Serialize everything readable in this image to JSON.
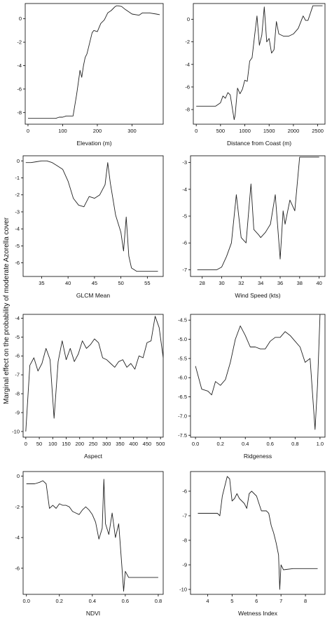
{
  "figure": {
    "y_axis_label": "Marginal effect on the probability of moderate Azorella cover"
  },
  "chart_data": [
    {
      "type": "line",
      "xlabel": "Elevation (m)",
      "xlim": [
        -8,
        390
      ],
      "ylim": [
        -9,
        1.3
      ],
      "xticks": [
        0,
        100,
        200,
        300
      ],
      "yticks": [
        0,
        -2,
        -4,
        -6,
        -8
      ],
      "x": [
        0,
        80,
        90,
        100,
        110,
        125,
        130,
        140,
        145,
        150,
        155,
        160,
        165,
        170,
        175,
        185,
        190,
        200,
        210,
        220,
        230,
        240,
        250,
        255,
        260,
        270,
        280,
        300,
        320,
        330,
        350,
        370,
        380
      ],
      "y": [
        -8.5,
        -8.5,
        -8.4,
        -8.4,
        -8.3,
        -8.3,
        -8.3,
        -6.5,
        -5.5,
        -4.4,
        -5.0,
        -4.0,
        -3.3,
        -3.0,
        -2.4,
        -1.2,
        -1.0,
        -1.1,
        -0.4,
        -0.1,
        0.5,
        0.7,
        1.0,
        1.1,
        1.1,
        1.05,
        0.8,
        0.4,
        0.3,
        0.5,
        0.5,
        0.4,
        0.35
      ]
    },
    {
      "type": "line",
      "xlabel": "Distance from Coast (m)",
      "xlim": [
        -60,
        2650
      ],
      "ylim": [
        -9.3,
        1.4
      ],
      "xticks": [
        0,
        500,
        1000,
        1500,
        2000,
        2500
      ],
      "yticks": [
        0,
        -2,
        -4,
        -6,
        -8
      ],
      "x": [
        0,
        200,
        400,
        500,
        550,
        600,
        650,
        700,
        780,
        800,
        850,
        900,
        950,
        1000,
        1050,
        1100,
        1150,
        1200,
        1250,
        1300,
        1350,
        1400,
        1450,
        1500,
        1550,
        1600,
        1650,
        1700,
        1800,
        1900,
        2000,
        2100,
        2200,
        2250,
        2300,
        2400,
        2500,
        2600
      ],
      "y": [
        -7.7,
        -7.7,
        -7.7,
        -7.4,
        -6.8,
        -7.0,
        -6.5,
        -6.7,
        -8.9,
        -8.5,
        -6.1,
        -6.6,
        -6.2,
        -5.4,
        -5.5,
        -3.7,
        -3.4,
        -1.5,
        0.3,
        -2.3,
        -1.4,
        1.1,
        -2.0,
        -1.7,
        -3.0,
        -2.7,
        -0.2,
        -1.3,
        -1.5,
        -1.5,
        -1.3,
        -0.8,
        0.3,
        -0.1,
        -0.1,
        1.2,
        1.2,
        1.2
      ]
    },
    {
      "type": "line",
      "xlabel": "GLCM Mean",
      "xlim": [
        31.5,
        58
      ],
      "ylim": [
        -6.8,
        0.3
      ],
      "xticks": [
        35,
        40,
        45,
        50,
        55
      ],
      "yticks": [
        0,
        -1,
        -2,
        -3,
        -4,
        -5,
        -6
      ],
      "x": [
        32,
        33,
        34,
        35,
        36,
        37,
        38,
        39,
        40,
        41,
        42,
        43,
        44,
        45,
        46,
        47,
        47.5,
        48,
        49,
        50,
        50.5,
        51,
        51.5,
        52,
        53,
        55,
        57
      ],
      "y": [
        -0.1,
        -0.1,
        -0.05,
        0,
        0,
        -0.1,
        -0.3,
        -0.5,
        -1.2,
        -2.2,
        -2.6,
        -2.7,
        -2.1,
        -2.2,
        -2.0,
        -1.4,
        -0.1,
        -1.3,
        -3.2,
        -4.2,
        -5.3,
        -3.3,
        -5.6,
        -6.3,
        -6.5,
        -6.5,
        -6.5
      ]
    },
    {
      "type": "line",
      "xlabel": "Wind Speed (kts)",
      "xlim": [
        26.8,
        40.6
      ],
      "ylim": [
        -7.25,
        -2.75
      ],
      "xticks": [
        28,
        30,
        32,
        34,
        36,
        38,
        40
      ],
      "yticks": [
        -3,
        -4,
        -5,
        -6,
        -7
      ],
      "x": [
        27.5,
        28.5,
        29.5,
        30,
        30.5,
        31,
        31.5,
        32,
        32.5,
        33,
        33.3,
        33.8,
        34,
        34.5,
        35,
        35.5,
        36,
        36.3,
        36.5,
        37,
        37.5,
        38,
        39,
        40
      ],
      "y": [
        -7.0,
        -7.0,
        -7.0,
        -6.9,
        -6.5,
        -6.0,
        -4.2,
        -5.8,
        -6.0,
        -3.8,
        -5.5,
        -5.7,
        -5.8,
        -5.6,
        -5.3,
        -4.2,
        -6.6,
        -4.8,
        -5.3,
        -4.4,
        -4.8,
        -2.8,
        -2.8,
        -2.8
      ]
    },
    {
      "type": "line",
      "xlabel": "Aspect",
      "xlim": [
        -10,
        510
      ],
      "ylim": [
        -10.3,
        -3.8
      ],
      "xticks": [
        0,
        50,
        100,
        150,
        200,
        250,
        300,
        350,
        400,
        450,
        500
      ],
      "yticks": [
        -4,
        -5,
        -6,
        -7,
        -8,
        -9,
        -10
      ],
      "x": [
        0,
        15,
        30,
        45,
        60,
        75,
        90,
        105,
        120,
        135,
        150,
        165,
        180,
        195,
        210,
        225,
        240,
        255,
        270,
        285,
        300,
        315,
        330,
        345,
        360,
        375,
        390,
        405,
        420,
        435,
        450,
        465,
        480,
        495,
        510
      ],
      "y": [
        -10,
        -6.5,
        -6.1,
        -6.8,
        -6.4,
        -5.6,
        -6.2,
        -9.3,
        -6.3,
        -5.2,
        -6.2,
        -5.6,
        -6.3,
        -5.9,
        -5.2,
        -5.6,
        -5.4,
        -5.1,
        -5.3,
        -6.1,
        -6.2,
        -6.4,
        -6.6,
        -6.3,
        -6.2,
        -6.6,
        -6.4,
        -6.7,
        -6.0,
        -6.1,
        -5.3,
        -5.2,
        -3.9,
        -4.5,
        -6.1
      ]
    },
    {
      "type": "line",
      "xlabel": "Ridgeness",
      "xlim": [
        -0.04,
        1.04
      ],
      "ylim": [
        -7.55,
        -4.35
      ],
      "xticks": [
        0.0,
        0.2,
        0.4,
        0.6,
        0.8,
        1.0
      ],
      "yticks": [
        -4.5,
        -5.0,
        -5.5,
        -6.0,
        -6.5,
        -7.0,
        -7.5
      ],
      "x": [
        0.0,
        0.05,
        0.1,
        0.13,
        0.16,
        0.2,
        0.24,
        0.28,
        0.32,
        0.36,
        0.4,
        0.44,
        0.48,
        0.52,
        0.56,
        0.6,
        0.64,
        0.68,
        0.72,
        0.76,
        0.8,
        0.84,
        0.88,
        0.92,
        0.96,
        0.98,
        1.0
      ],
      "y": [
        -5.7,
        -6.3,
        -6.35,
        -6.45,
        -6.1,
        -6.2,
        -6.05,
        -5.6,
        -5.0,
        -4.65,
        -4.9,
        -5.2,
        -5.2,
        -5.25,
        -5.25,
        -5.05,
        -4.95,
        -4.95,
        -4.8,
        -4.9,
        -5.05,
        -5.2,
        -5.6,
        -5.5,
        -7.35,
        -6.2,
        -4.35
      ]
    },
    {
      "type": "line",
      "xlabel": "NDVI",
      "xlim": [
        -0.02,
        0.83
      ],
      "ylim": [
        -7.7,
        0.3
      ],
      "xticks": [
        0.0,
        0.2,
        0.4,
        0.6,
        0.8
      ],
      "yticks": [
        0,
        -2,
        -4,
        -6
      ],
      "x": [
        0.0,
        0.05,
        0.08,
        0.1,
        0.12,
        0.14,
        0.16,
        0.18,
        0.2,
        0.22,
        0.24,
        0.26,
        0.28,
        0.3,
        0.32,
        0.34,
        0.36,
        0.38,
        0.4,
        0.42,
        0.44,
        0.46,
        0.47,
        0.48,
        0.5,
        0.52,
        0.54,
        0.56,
        0.58,
        0.59,
        0.6,
        0.62,
        0.65,
        0.7,
        0.75,
        0.8
      ],
      "y": [
        -0.5,
        -0.5,
        -0.4,
        -0.3,
        -0.5,
        -2.1,
        -1.9,
        -2.1,
        -1.8,
        -1.9,
        -1.9,
        -2.0,
        -2.3,
        -2.4,
        -2.5,
        -2.2,
        -2.0,
        -2.2,
        -2.5,
        -3.0,
        -4.1,
        -3.4,
        -0.2,
        -3.1,
        -3.8,
        -2.4,
        -4.0,
        -3.1,
        -6.0,
        -7.5,
        -6.2,
        -6.6,
        -6.6,
        -6.6,
        -6.6,
        -6.6
      ]
    },
    {
      "type": "line",
      "xlabel": "Wetness Index",
      "xlim": [
        3.3,
        8.8
      ],
      "ylim": [
        -10.2,
        -5.2
      ],
      "xticks": [
        4,
        5,
        6,
        7,
        8
      ],
      "yticks": [
        -6,
        -7,
        -8,
        -9,
        -10
      ],
      "x": [
        3.6,
        4.0,
        4.4,
        4.5,
        4.6,
        4.7,
        4.8,
        4.9,
        5.0,
        5.1,
        5.2,
        5.3,
        5.4,
        5.5,
        5.6,
        5.7,
        5.8,
        5.9,
        6.0,
        6.1,
        6.2,
        6.3,
        6.4,
        6.5,
        6.6,
        6.7,
        6.8,
        6.9,
        6.95,
        7.0,
        7.1,
        7.5,
        8.0,
        8.5
      ],
      "y": [
        -6.9,
        -6.9,
        -6.9,
        -7.0,
        -6.2,
        -5.8,
        -5.4,
        -5.5,
        -6.4,
        -6.3,
        -6.1,
        -6.3,
        -6.4,
        -6.5,
        -6.7,
        -6.1,
        -6.0,
        -6.1,
        -6.2,
        -6.5,
        -6.8,
        -6.8,
        -6.8,
        -6.9,
        -7.4,
        -7.7,
        -8.1,
        -8.6,
        -10.0,
        -9.0,
        -9.2,
        -9.15,
        -9.15,
        -9.15
      ]
    }
  ]
}
